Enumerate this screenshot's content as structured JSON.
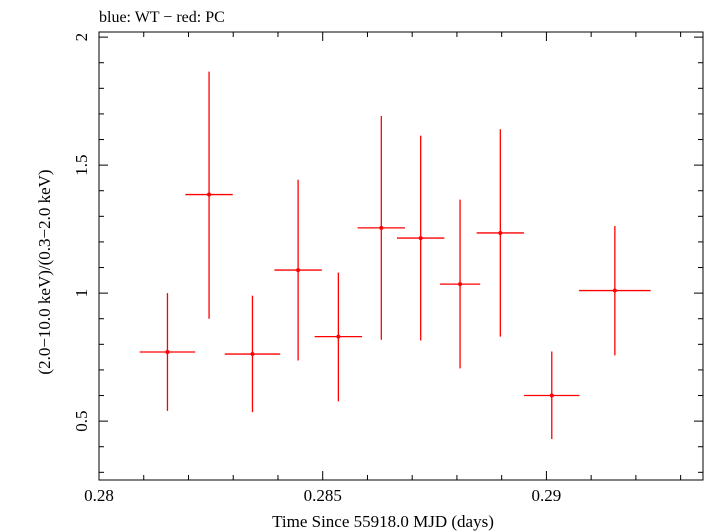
{
  "chart_data": {
    "type": "scatter",
    "title": "blue: WT − red: PC",
    "xlabel": "Time Since 55918.0 MJD (days)",
    "ylabel": "(2.0−10.0 keV)/(0.3−2.0 keV)",
    "xlim": [
      0.28,
      0.2935
    ],
    "ylim": [
      0.27,
      2.02
    ],
    "x_ticks": [
      {
        "value": 0.28,
        "label": "0.28"
      },
      {
        "value": 0.285,
        "label": "0.285"
      },
      {
        "value": 0.29,
        "label": "0.29"
      }
    ],
    "y_ticks": [
      {
        "value": 0.5,
        "label": "0.5"
      },
      {
        "value": 1,
        "label": "1"
      },
      {
        "value": 1.5,
        "label": "1.5"
      },
      {
        "value": 2,
        "label": "2"
      }
    ],
    "grid": false,
    "series": [
      {
        "color": "#ff0000",
        "points": [
          {
            "x": 0.28153,
            "xerr": 0.00062,
            "y": 0.77,
            "ylo": 0.54,
            "yhi": 1.0
          },
          {
            "x": 0.28246,
            "xerr": 0.00053,
            "y": 1.385,
            "ylo": 0.9,
            "yhi": 1.865
          },
          {
            "x": 0.28343,
            "xerr": 0.00062,
            "y": 0.762,
            "ylo": 0.535,
            "yhi": 0.99
          },
          {
            "x": 0.28445,
            "xerr": 0.00053,
            "y": 1.09,
            "ylo": 0.737,
            "yhi": 1.443
          },
          {
            "x": 0.28535,
            "xerr": 0.00053,
            "y": 0.83,
            "ylo": 0.577,
            "yhi": 1.08
          },
          {
            "x": 0.28631,
            "xerr": 0.00053,
            "y": 1.255,
            "ylo": 0.818,
            "yhi": 1.692
          },
          {
            "x": 0.28719,
            "xerr": 0.00053,
            "y": 1.215,
            "ylo": 0.815,
            "yhi": 1.615
          },
          {
            "x": 0.28807,
            "xerr": 0.00045,
            "y": 1.035,
            "ylo": 0.706,
            "yhi": 1.365
          },
          {
            "x": 0.28897,
            "xerr": 0.00053,
            "y": 1.235,
            "ylo": 0.83,
            "yhi": 1.64
          },
          {
            "x": 0.29012,
            "xerr": 0.00062,
            "y": 0.6,
            "ylo": 0.43,
            "yhi": 0.772
          },
          {
            "x": 0.29153,
            "xerr": 0.0008,
            "y": 1.01,
            "ylo": 0.757,
            "yhi": 1.262
          }
        ]
      }
    ]
  }
}
